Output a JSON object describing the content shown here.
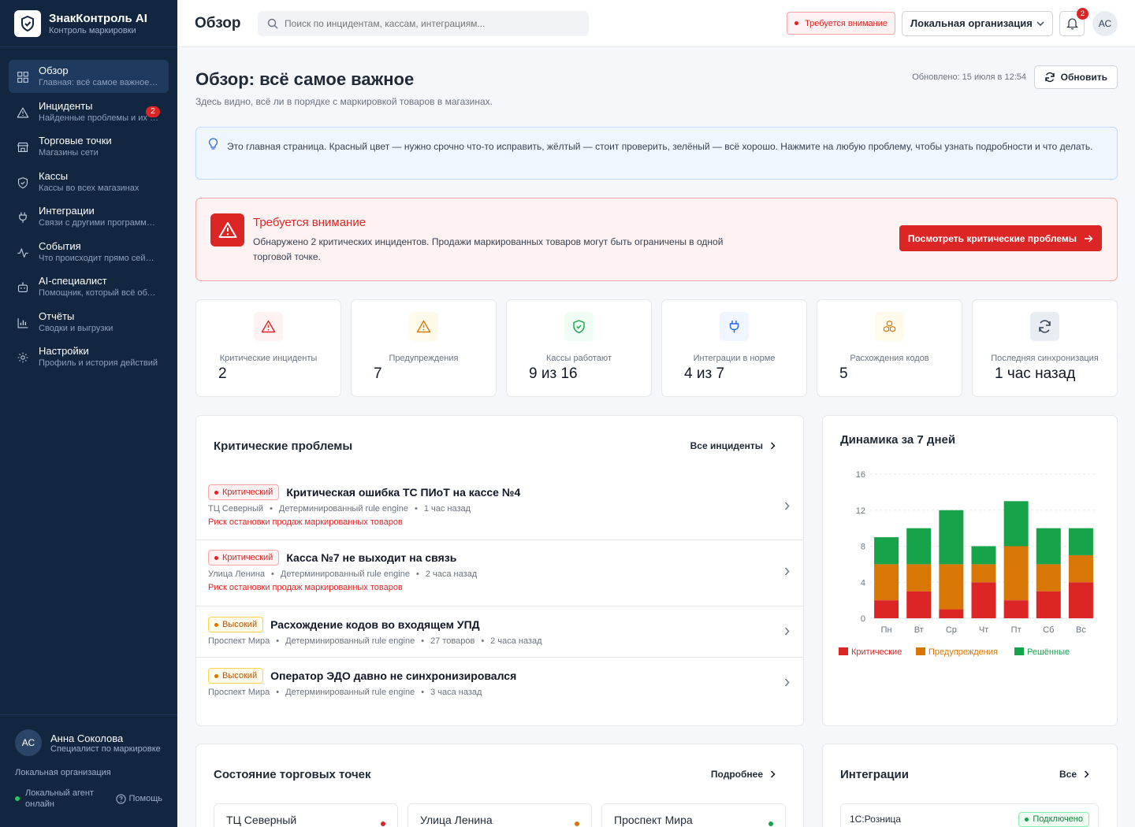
{
  "brand": {
    "title": "ЗнакКонтроль AI",
    "subtitle": "Контроль маркировки"
  },
  "nav": [
    {
      "label": "Обзор",
      "sub": "Главная: всё самое важное на одном экране",
      "icon": "grid-icon",
      "active": true
    },
    {
      "label": "Инциденты",
      "sub": "Найденные проблемы и их решения",
      "icon": "warning-icon",
      "badge": "2"
    },
    {
      "label": "Торговые точки",
      "sub": "Магазины сети",
      "icon": "store-icon"
    },
    {
      "label": "Кассы",
      "sub": "Кассы во всех магазинах",
      "icon": "shield-icon"
    },
    {
      "label": "Интеграции",
      "sub": "Связи с другими программами",
      "icon": "plug-icon"
    },
    {
      "label": "События",
      "sub": "Что происходит прямо сейчас",
      "icon": "activity-icon"
    },
    {
      "label": "AI-специалист",
      "sub": "Помощник, который всё объяснит",
      "icon": "bot-icon"
    },
    {
      "label": "Отчёты",
      "sub": "Сводки и выгрузки",
      "icon": "chart-icon"
    },
    {
      "label": "Настройки",
      "sub": "Профиль и история действий",
      "icon": "gear-icon"
    }
  ],
  "user": {
    "initials": "АС",
    "name": "Анна Соколова",
    "role": "Специалист по маркировке",
    "org": "Локальная организация",
    "agent": "Локальный агент онлайн",
    "help": "Помощь"
  },
  "header": {
    "title": "Обзор",
    "search_placeholder": "Поиск по инцидентам, кассам, интеграциям...",
    "attention": "Требуется внимание",
    "org": "Локальная организация",
    "notif_count": "2",
    "avatar": "АС"
  },
  "page": {
    "title": "Обзор: всё самое важное",
    "subtitle": "Здесь видно, всё ли в порядке с маркировкой товаров в магазинах.",
    "updated": "Обновлено: 15 июля в 12:54",
    "refresh": "Обновить"
  },
  "info": "Это главная страница. Красный цвет — нужно срочно что-то исправить, жёлтый — стоит проверить, зелёный — всё хорошо. Нажмите на любую проблему, чтобы узнать подробности и что делать.",
  "alert": {
    "title": "Требуется внимание",
    "text": "Обнаружено 2 критических инцидентов. Продажи маркированных товаров могут быть ограничены в одной торговой точке.",
    "button": "Посмотреть критические проблемы"
  },
  "kpis": [
    {
      "label": "Критические инциденты",
      "value": "2",
      "icon": "warning-icon",
      "color": "#dc2626",
      "bg": "#fef2f2"
    },
    {
      "label": "Предупреждения",
      "value": "7",
      "icon": "warning-icon",
      "color": "#d97706",
      "bg": "#fffbeb"
    },
    {
      "label": "Кассы работают",
      "value": "9 из 16",
      "icon": "shield-check-icon",
      "color": "#16a34a",
      "bg": "#f0fdf4"
    },
    {
      "label": "Интеграции в норме",
      "value": "4 из 7",
      "icon": "plug-icon",
      "color": "#2563eb",
      "bg": "#eff6ff"
    },
    {
      "label": "Расхождения кодов",
      "value": "5",
      "icon": "boxes-icon",
      "color": "#d97706",
      "bg": "#fffbeb"
    },
    {
      "label": "Последняя синхронизация",
      "value": "1 час назад",
      "icon": "refresh-icon",
      "color": "#334155",
      "bg": "#e8edf3"
    }
  ],
  "critical": {
    "title": "Критические проблемы",
    "link": "Все инциденты",
    "items": [
      {
        "severity": "Критический",
        "level": "crit",
        "title": "Критическая ошибка ТС ПИоТ на кассе №4",
        "meta": [
          "ТЦ Северный",
          "Детерминированный rule engine",
          "1 час назад"
        ],
        "risk": "Риск остановки продаж маркированных товаров"
      },
      {
        "severity": "Критический",
        "level": "crit",
        "title": "Касса №7 не выходит на связь",
        "meta": [
          "Улица Ленина",
          "Детерминированный rule engine",
          "2 часа назад"
        ],
        "risk": "Риск остановки продаж маркированных товаров"
      },
      {
        "severity": "Высокий",
        "level": "high",
        "title": "Расхождение кодов во входящем УПД",
        "meta": [
          "Проспект Мира",
          "Детерминированный rule engine",
          "27 товаров",
          "2 часа назад"
        ],
        "risk": ""
      },
      {
        "severity": "Высокий",
        "level": "high",
        "title": "Оператор ЭДО давно не синхронизировался",
        "meta": [
          "Проспект Мира",
          "Детерминированный rule engine",
          "3 часа назад"
        ],
        "risk": ""
      }
    ]
  },
  "chart": {
    "title": "Динамика за 7 дней"
  },
  "chart_data": {
    "type": "bar",
    "stacked": true,
    "categories": [
      "Пн",
      "Вт",
      "Ср",
      "Чт",
      "Пт",
      "Сб",
      "Вс"
    ],
    "series": [
      {
        "name": "Критические",
        "color": "#dc2626",
        "values": [
          2,
          3,
          1,
          4,
          2,
          3,
          4
        ]
      },
      {
        "name": "Предупреждения",
        "color": "#d97706",
        "values": [
          4,
          3,
          5,
          2,
          6,
          3,
          3
        ]
      },
      {
        "name": "Решённые",
        "color": "#16a34a",
        "values": [
          3,
          4,
          6,
          2,
          5,
          4,
          3
        ]
      }
    ],
    "ylim": [
      0,
      16
    ],
    "yticks": [
      0,
      4,
      8,
      12,
      16
    ],
    "legend": "bottom"
  },
  "stores": {
    "title": "Состояние торговых точек",
    "link": "Подробнее",
    "items": [
      {
        "name": "ТЦ Северный",
        "color": "#dc2626"
      },
      {
        "name": "Улица Ленина",
        "color": "#d97706"
      },
      {
        "name": "Проспект Мира",
        "color": "#16a34a"
      }
    ]
  },
  "integrations": {
    "title": "Интеграции",
    "link": "Все",
    "first": {
      "name": "1С:Розница",
      "status": "Подключено"
    }
  }
}
